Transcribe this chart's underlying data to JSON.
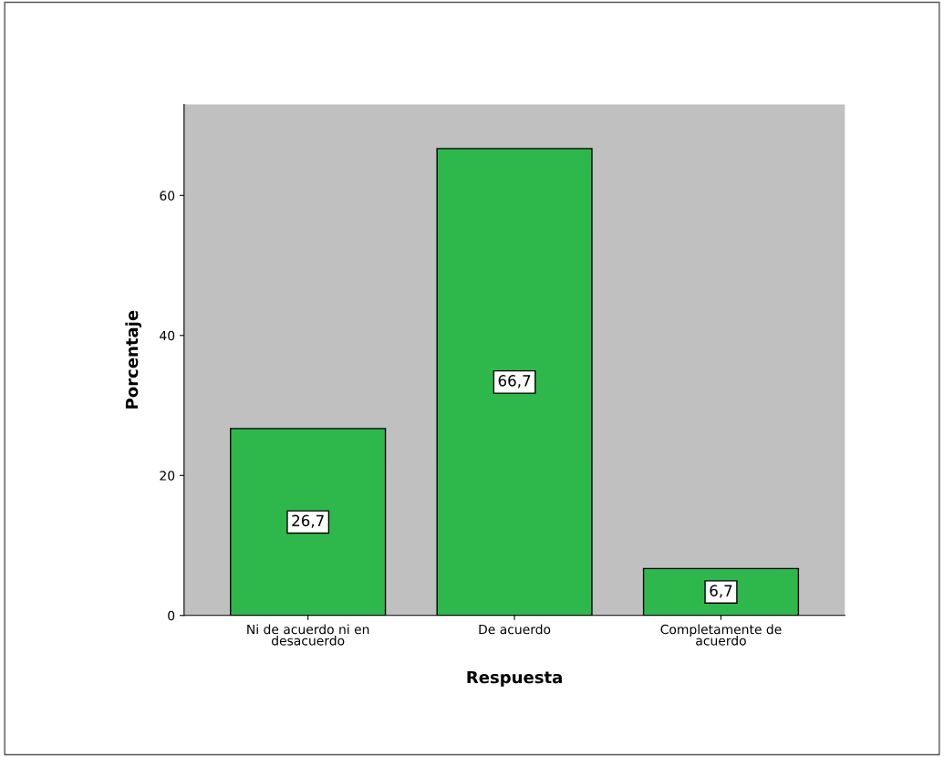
{
  "chart_data": {
    "type": "bar",
    "xlabel": "Respuesta",
    "ylabel": "Porcentaje",
    "categories": [
      "Ni de acuerdo ni en\ndesacuerdo",
      "De acuerdo",
      "Completamente de\nacuerdo"
    ],
    "values": [
      26.7,
      66.7,
      6.7
    ],
    "value_labels": [
      "26,7",
      "66,7",
      "6,7"
    ],
    "color": "#2eb84b",
    "ylim": [
      0,
      73
    ],
    "yticks": [
      0,
      20,
      40,
      60
    ],
    "grid": false
  }
}
